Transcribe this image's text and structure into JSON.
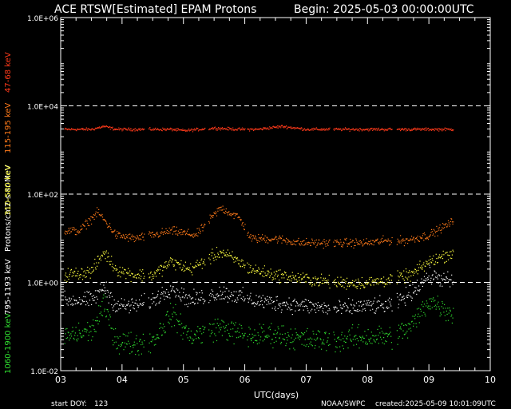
{
  "header": {
    "title": "ACE RTSW[Estimated] EPAM Protons",
    "begin": "Begin: 2025-05-03 00:00:00UTC"
  },
  "footer": {
    "start_doy_label": "start DOY:",
    "start_doy_value": "123",
    "agency": "NOAA/SWPC",
    "created": "created:2025-05-09 10:01:09UTC"
  },
  "axes": {
    "xlabel": "UTC(days)",
    "ylabel": "Protons/cm2-s-sr-MeV",
    "x_ticks": [
      "03",
      "04",
      "05",
      "06",
      "07",
      "08",
      "09",
      "10"
    ],
    "y_ticks": [
      "1.0E-02",
      "1.0E+00",
      "1.0E+02",
      "1.0E+04",
      "1.0E+06"
    ]
  },
  "colors": {
    "ch47_68": "#ff3a1a",
    "ch115_195": "#ff7a1a",
    "ch310_580": "#ffa030",
    "ch795_1193": "#ffff40",
    "ch1060_1900": "#ffffff",
    "ch_green": "#30e030",
    "axis": "#ffffff",
    "gridline": "#ffffff"
  },
  "chart_data": {
    "type": "scatter",
    "title": "ACE RTSW[Estimated] EPAM Protons",
    "xlabel": "UTC(days)",
    "ylabel": "Protons/cm2-s-sr-MeV",
    "x_unit": "day of May 2025",
    "xlim": [
      3,
      10
    ],
    "ylim": [
      0.01,
      1000000
    ],
    "y_scale": "log",
    "grid": "dashed lines at 1.0E+00, 1.0E+02, 1.0E+04",
    "data_gaps": [
      [
        3.0,
        3.05
      ],
      [
        4.36,
        4.42
      ],
      [
        5.35,
        5.4
      ],
      [
        6.0,
        6.03
      ],
      [
        7.38,
        7.44
      ],
      [
        8.4,
        8.47
      ],
      [
        9.4,
        10.0
      ]
    ],
    "series": [
      {
        "name": "47-68 keV",
        "color": "#ff3a1a",
        "points": [
          [
            3.05,
            3000
          ],
          [
            3.5,
            3000
          ],
          [
            3.7,
            3500
          ],
          [
            3.9,
            3000
          ],
          [
            4.2,
            3000
          ],
          [
            4.5,
            3000
          ],
          [
            4.8,
            3000
          ],
          [
            5.0,
            2800
          ],
          [
            5.5,
            3200
          ],
          [
            5.9,
            3000
          ],
          [
            6.2,
            3000
          ],
          [
            6.6,
            3500
          ],
          [
            7.0,
            3000
          ],
          [
            7.5,
            3000
          ],
          [
            8.0,
            3000
          ],
          [
            8.5,
            3000
          ],
          [
            9.0,
            3000
          ],
          [
            9.4,
            3000
          ]
        ]
      },
      {
        "name": "115-195 keV",
        "color": "#ff7a1a",
        "points": [
          [
            3.05,
            15
          ],
          [
            3.3,
            15
          ],
          [
            3.6,
            40
          ],
          [
            3.9,
            12
          ],
          [
            4.2,
            10
          ],
          [
            4.5,
            12
          ],
          [
            4.8,
            15
          ],
          [
            5.2,
            12
          ],
          [
            5.6,
            50
          ],
          [
            5.9,
            30
          ],
          [
            6.1,
            10
          ],
          [
            6.5,
            10
          ],
          [
            6.9,
            8
          ],
          [
            7.3,
            8
          ],
          [
            7.6,
            8
          ],
          [
            8.0,
            8
          ],
          [
            8.3,
            9
          ],
          [
            8.6,
            9
          ],
          [
            9.0,
            12
          ],
          [
            9.4,
            25
          ]
        ]
      },
      {
        "name": "310-580 keV",
        "color": "#ffff40",
        "points": [
          [
            3.05,
            1.5
          ],
          [
            3.5,
            1.8
          ],
          [
            3.7,
            5
          ],
          [
            3.9,
            2
          ],
          [
            4.2,
            1.5
          ],
          [
            4.5,
            1.5
          ],
          [
            4.8,
            3
          ],
          [
            5.1,
            2
          ],
          [
            5.6,
            5
          ],
          [
            5.9,
            3
          ],
          [
            6.1,
            2
          ],
          [
            6.5,
            1.5
          ],
          [
            7.0,
            1.2
          ],
          [
            7.5,
            1
          ],
          [
            8.0,
            1
          ],
          [
            8.4,
            1.2
          ],
          [
            8.7,
            1.5
          ],
          [
            9.0,
            3
          ],
          [
            9.4,
            5
          ]
        ]
      },
      {
        "name": "795-1193 keV",
        "color": "#ffffff",
        "points": [
          [
            3.05,
            0.4
          ],
          [
            3.5,
            0.4
          ],
          [
            3.7,
            0.8
          ],
          [
            3.9,
            0.3
          ],
          [
            4.2,
            0.3
          ],
          [
            4.5,
            0.4
          ],
          [
            4.8,
            0.8
          ],
          [
            5.1,
            0.4
          ],
          [
            5.6,
            0.6
          ],
          [
            5.9,
            0.5
          ],
          [
            6.1,
            0.4
          ],
          [
            6.5,
            0.35
          ],
          [
            7.0,
            0.3
          ],
          [
            7.5,
            0.25
          ],
          [
            8.0,
            0.3
          ],
          [
            8.4,
            0.3
          ],
          [
            8.7,
            0.6
          ],
          [
            9.0,
            1.5
          ],
          [
            9.4,
            1
          ]
        ]
      },
      {
        "name": "1060-1900 keV",
        "color": "#30e030",
        "points": [
          [
            3.05,
            0.06
          ],
          [
            3.5,
            0.08
          ],
          [
            3.7,
            0.3
          ],
          [
            3.9,
            0.05
          ],
          [
            4.2,
            0.04
          ],
          [
            4.5,
            0.05
          ],
          [
            4.8,
            0.2
          ],
          [
            5.1,
            0.06
          ],
          [
            5.6,
            0.1
          ],
          [
            5.9,
            0.07
          ],
          [
            6.1,
            0.06
          ],
          [
            6.5,
            0.07
          ],
          [
            7.0,
            0.05
          ],
          [
            7.5,
            0.05
          ],
          [
            8.0,
            0.06
          ],
          [
            8.4,
            0.06
          ],
          [
            8.7,
            0.1
          ],
          [
            9.0,
            0.4
          ],
          [
            9.4,
            0.2
          ]
        ]
      }
    ]
  }
}
